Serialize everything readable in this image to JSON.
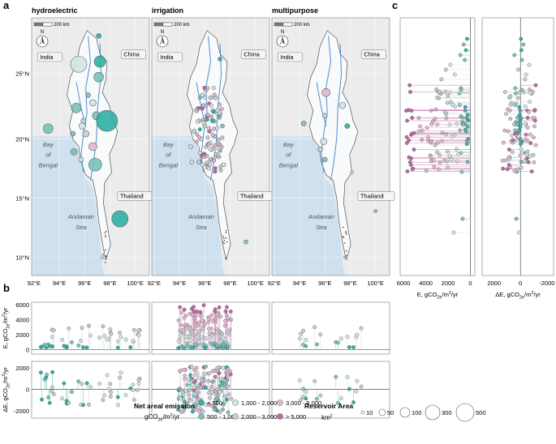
{
  "panel_labels": {
    "a": "a",
    "b": "b",
    "c": "c"
  },
  "colors": {
    "lt500": "#2fb2a4",
    "c500_1000": "#79c2bb",
    "c1000_2000": "#d4e6e2",
    "c2000_3000": "#c9cfcd",
    "c3000_5000": "#e3b6d0",
    "gt5000": "#bb6aa3",
    "sea": "#cfe0ee",
    "land": "#ececec",
    "myanmar": "#f8fafc",
    "river": "#4a8fd4",
    "frame": "#9a9a9a"
  },
  "maps": [
    {
      "title": "hydroelectric",
      "scale_label": "200 km",
      "north": "N",
      "country_labels": [
        "India",
        "China",
        "Thailand"
      ],
      "sea_labels": [
        "Bay",
        "of",
        "Bengal",
        "Andaman",
        "Sea"
      ]
    },
    {
      "title": "irrigation",
      "scale_label": "200 km",
      "north": "N",
      "country_labels": [
        "India",
        "China",
        "Thailand"
      ],
      "sea_labels": [
        "Bay",
        "of",
        "Bengal",
        "Andaman",
        "Sea"
      ]
    },
    {
      "title": "multipurpose",
      "scale_label": "200 km",
      "north": "N",
      "country_labels": [
        "India",
        "China",
        "Thailand"
      ],
      "sea_labels": [
        "Bay",
        "of",
        "Bengal",
        "Andaman",
        "Sea"
      ]
    }
  ],
  "map_axes": {
    "lat_ticks": [
      "25°N",
      "20°N",
      "15°N",
      "10°N"
    ],
    "lon_ticks": [
      "92°E",
      "94°E",
      "96°E",
      "98°E",
      "100°E"
    ]
  },
  "chart_data": [
    {
      "id": "panel-b-top",
      "type": "scatter",
      "subtype": "lollipop strip per reservoir purpose",
      "ylabel": "E, gCO2e/m2/yr",
      "ylabel_parts": [
        "E, gCO",
        "2e",
        "/m",
        "2",
        "/yr"
      ],
      "yticks": [
        "6000",
        "4000",
        "2000",
        "0"
      ],
      "ylim": [
        -600,
        6300
      ],
      "facets": [
        "hydroelectric",
        "irrigation",
        "multipurpose"
      ],
      "summary": {
        "hydroelectric": {
          "n_approx": 45,
          "range": [
            250,
            3600
          ],
          "cluster_at_lon_index": "center"
        },
        "irrigation": {
          "n_approx": 160,
          "range": [
            -400,
            6000
          ],
          "cluster": "dense center"
        },
        "multipurpose": {
          "n_approx": 20,
          "range": [
            300,
            3000
          ]
        }
      }
    },
    {
      "id": "panel-b-bottom",
      "type": "scatter",
      "subtype": "lollipop strip per reservoir purpose",
      "ylabel": "ΔE, gCO2e/m2/yr",
      "ylabel_parts": [
        "ΔE, gCO",
        "2e",
        "/m",
        "2",
        "/yr"
      ],
      "yticks": [
        "2000",
        "0",
        "-2000"
      ],
      "ylim": [
        -2700,
        2600
      ],
      "facets": [
        "hydroelectric",
        "irrigation",
        "multipurpose"
      ],
      "summary": {
        "hydroelectric": {
          "range": [
            -1800,
            1500
          ]
        },
        "irrigation": {
          "range": [
            -2000,
            2300
          ]
        },
        "multipurpose": {
          "range": [
            -1500,
            1400
          ]
        }
      }
    },
    {
      "id": "panel-c-left",
      "type": "scatter",
      "subtype": "horizontal lollipop by latitude",
      "xlabel": "E, gCO2e/m2/yr",
      "xlabel_parts": [
        "E, gCO",
        "2e",
        "/m",
        "2",
        "/yr"
      ],
      "xticks": [
        "6000",
        "4000",
        "2000",
        "0"
      ],
      "xlim": [
        6300,
        -400
      ],
      "summary": {
        "range": [
          0,
          6000
        ],
        "latitude_span": [
          "10°N",
          "28°N"
        ]
      }
    },
    {
      "id": "panel-c-right",
      "type": "scatter",
      "subtype": "horizontal lollipop by latitude",
      "xlabel": "ΔE, gCO2e/m2/yr",
      "xlabel_parts": [
        "ΔE, gCO",
        "2e",
        "/m",
        "2",
        "/yr"
      ],
      "xticks": [
        "2000",
        "0",
        "-2000"
      ],
      "xlim": [
        2900,
        -2500
      ],
      "summary": {
        "range": [
          -1500,
          2500
        ]
      }
    }
  ],
  "legend": {
    "color_title": "Net areal emission",
    "color_unit_parts": [
      "gCO",
      "2e",
      "/m",
      "2",
      "/yr"
    ],
    "color_items": [
      "< 500",
      "500 - 1,000",
      "1,000 - 2,000",
      "2,000 - 3,000",
      "3,000 - 5,000",
      "> 5,000"
    ],
    "size_title": "Reservoir Area",
    "size_unit_parts": [
      "km",
      "2"
    ],
    "size_items": [
      "10",
      "50",
      "100",
      "300",
      "500"
    ]
  }
}
